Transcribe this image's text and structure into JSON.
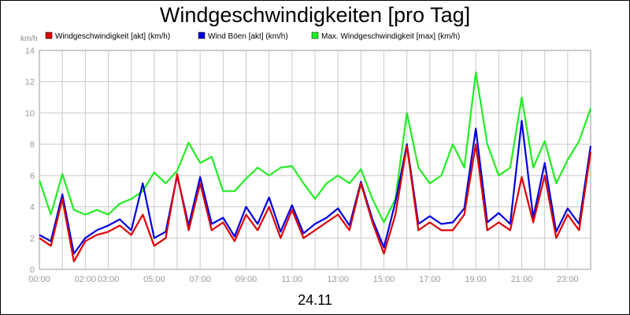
{
  "chart_data": {
    "type": "line",
    "title": "Windgeschwindigkeiten [pro Tag]",
    "ylabel": "km/h",
    "xlabel": "24.11",
    "ylim": [
      0,
      14
    ],
    "yticks": [
      0,
      2,
      4,
      6,
      8,
      10,
      12,
      14
    ],
    "x_ticks": [
      {
        "label": "00:00",
        "hour": 0
      },
      {
        "label": "02:00",
        "hour": 2
      },
      {
        "label": "03:00",
        "hour": 3
      },
      {
        "label": "05:00",
        "hour": 5
      },
      {
        "label": "07:00",
        "hour": 7
      },
      {
        "label": "09:00",
        "hour": 9
      },
      {
        "label": "11:00",
        "hour": 11
      },
      {
        "label": "13:00",
        "hour": 13
      },
      {
        "label": "15:00",
        "hour": 15
      },
      {
        "label": "17:00",
        "hour": 17
      },
      {
        "label": "19:00",
        "hour": 19
      },
      {
        "label": "21:00",
        "hour": 21
      },
      {
        "label": "23:00",
        "hour": 23
      }
    ],
    "x_hours": [
      0,
      0.5,
      1,
      1.5,
      2,
      2.5,
      3,
      3.5,
      4,
      4.5,
      5,
      5.5,
      6,
      6.5,
      7,
      7.5,
      8,
      8.5,
      9,
      9.5,
      10,
      10.5,
      11,
      11.5,
      12,
      12.5,
      13,
      13.5,
      14,
      14.5,
      15,
      15.5,
      16,
      16.5,
      17,
      17.5,
      18,
      18.5,
      19,
      19.5,
      20,
      20.5,
      21,
      21.5,
      22,
      22.5,
      23,
      23.5,
      24
    ],
    "grid": true,
    "legend_position": "top",
    "series": [
      {
        "name": "Windgeschwindigkeit [akt] (km/h)",
        "color": "#dd0000",
        "values": [
          2.0,
          1.5,
          4.5,
          0.5,
          1.8,
          2.2,
          2.4,
          2.8,
          2.2,
          3.5,
          1.5,
          2.0,
          6.1,
          2.5,
          5.5,
          2.5,
          3.0,
          1.8,
          3.5,
          2.5,
          4.0,
          2.0,
          3.8,
          2.0,
          2.5,
          3.0,
          3.5,
          2.5,
          5.5,
          3.0,
          1.0,
          3.5,
          7.9,
          2.5,
          3.0,
          2.5,
          2.5,
          3.5,
          8.0,
          2.5,
          3.0,
          2.5,
          5.9,
          3.0,
          6.0,
          2.0,
          3.5,
          2.5,
          7.5
        ]
      },
      {
        "name": "Wind Böen [akt] (km/h)",
        "color": "#0000dd",
        "values": [
          2.2,
          1.8,
          4.8,
          1.0,
          2.0,
          2.5,
          2.8,
          3.2,
          2.5,
          5.5,
          2.0,
          2.4,
          6.0,
          2.8,
          5.9,
          2.9,
          3.3,
          2.1,
          4.0,
          2.9,
          4.6,
          2.4,
          4.1,
          2.3,
          2.9,
          3.3,
          3.9,
          2.8,
          5.6,
          3.2,
          1.4,
          4.3,
          8.0,
          2.9,
          3.4,
          2.9,
          3.0,
          3.9,
          9.0,
          3.0,
          3.6,
          2.9,
          9.5,
          3.3,
          6.8,
          2.4,
          3.9,
          2.9,
          7.9
        ]
      },
      {
        "name": "Max. Windgeschwindigkeit [max] (km/h)",
        "color": "#22ee22",
        "values": [
          5.7,
          3.5,
          6.1,
          3.8,
          3.5,
          3.8,
          3.5,
          4.2,
          4.5,
          5.0,
          6.2,
          5.5,
          6.3,
          8.1,
          6.8,
          7.2,
          5.0,
          5.0,
          5.8,
          6.5,
          6.0,
          6.5,
          6.6,
          5.5,
          4.5,
          5.5,
          6.0,
          5.5,
          6.4,
          4.5,
          3.0,
          4.5,
          10.0,
          6.5,
          5.5,
          6.0,
          8.0,
          6.5,
          12.6,
          8.0,
          6.0,
          6.5,
          11.0,
          6.5,
          8.2,
          5.5,
          7.0,
          8.2,
          10.3
        ]
      }
    ]
  }
}
